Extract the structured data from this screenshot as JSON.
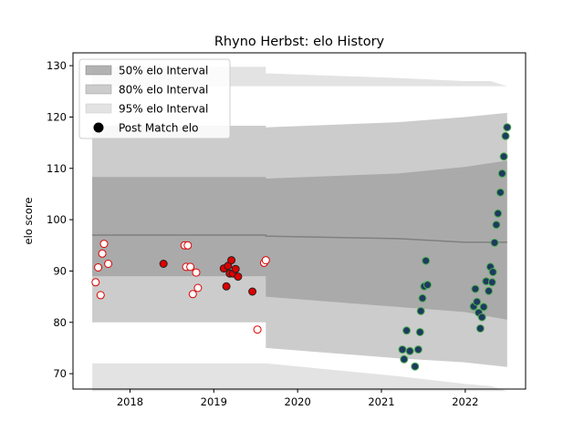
{
  "chart_data": {
    "type": "scatter",
    "title": "Rhyno Herbst: elo History",
    "xlabel": "",
    "ylabel": "elo score",
    "xlim": [
      2017.32,
      2022.72
    ],
    "ylim": [
      67.0,
      132.5
    ],
    "x_ticks": [
      2018,
      2019,
      2020,
      2021,
      2022
    ],
    "x_tick_labels": [
      "2018",
      "2019",
      "2020",
      "2021",
      "2022"
    ],
    "y_ticks": [
      70,
      80,
      90,
      100,
      110,
      120,
      130
    ],
    "y_tick_labels": [
      "70",
      "80",
      "90",
      "100",
      "110",
      "120",
      "130"
    ],
    "grid": false,
    "legend": {
      "placement": "top-left",
      "entries": [
        "50% elo Interval",
        "80% elo Interval",
        "95% elo Interval",
        "Post Match elo"
      ]
    },
    "colors": {
      "band50": "#808080",
      "band80": "#999999",
      "band95": "#c8c8c8",
      "mean_line": "#808080",
      "open_marker_edge": "#dd0000",
      "open_marker_fill": "#ffffff",
      "filled_marker_edge": "#222222",
      "filled_marker_fill": "#dd0000",
      "late_marker_edge": "#4caf50",
      "late_marker_fill": "#1f3a5f"
    },
    "bands": [
      {
        "name": "95% elo Interval",
        "x": [
          2017.55,
          2019.62,
          2019.62,
          2021.2,
          2022.0,
          2022.3,
          2022.5,
          2022.5,
          2022.3,
          2022.0,
          2021.2,
          2019.62,
          2019.62,
          2017.55
        ],
        "y_upper": [
          129.8,
          129.8,
          128.5,
          127.6,
          127.0,
          127.0,
          126.0,
          126.0,
          126.0,
          126.0,
          126.0,
          126.0,
          126.0,
          126.0
        ],
        "y_lower": [
          72.0,
          72.0,
          72.0,
          69.5,
          68.0,
          67.6,
          66.6,
          66.6,
          66.6,
          66.6,
          66.6,
          66.6,
          66.6,
          66.6
        ]
      },
      {
        "name": "80% elo Interval",
        "x": [
          2017.55,
          2019.62,
          2019.62,
          2021.2,
          2022.0,
          2022.5
        ],
        "y_upper": [
          118.3,
          118.3,
          118.0,
          119.0,
          120.0,
          120.8
        ],
        "y_lower": [
          80.0,
          80.0,
          75.0,
          73.0,
          72.2,
          71.3
        ]
      },
      {
        "name": "50% elo Interval",
        "x": [
          2017.55,
          2019.62,
          2019.62,
          2021.2,
          2022.0,
          2022.5
        ],
        "y_upper": [
          108.3,
          108.3,
          108.0,
          109.0,
          110.3,
          111.5
        ],
        "y_lower": [
          89.0,
          89.0,
          85.0,
          83.0,
          82.0,
          80.5
        ]
      }
    ],
    "mean_line": {
      "x": [
        2017.55,
        2019.62,
        2019.62,
        2021.2,
        2022.0,
        2022.3,
        2022.5
      ],
      "y": [
        97.0,
        97.0,
        96.8,
        96.3,
        95.6,
        95.6,
        95.6
      ]
    },
    "series": [
      {
        "x": [
          2017.59,
          2017.62,
          2017.65,
          2017.67,
          2017.69,
          2017.74,
          2018.65,
          2018.67,
          2018.69,
          2018.72,
          2018.75,
          2018.79,
          2018.81,
          2019.52,
          2019.6,
          2019.62
        ],
        "y": [
          87.8,
          90.7,
          85.3,
          93.4,
          95.3,
          91.4,
          95.0,
          90.8,
          95.0,
          90.8,
          85.5,
          89.7,
          86.7,
          78.6,
          91.6,
          92.1
        ]
      },
      {
        "x": [
          2018.4,
          2019.12,
          2019.15,
          2019.17,
          2019.19,
          2019.21,
          2019.23,
          2019.26,
          2019.29,
          2019.46
        ],
        "y": [
          91.4,
          90.5,
          87.0,
          91.0,
          89.5,
          92.1,
          89.5,
          90.4,
          88.9,
          86.0
        ]
      },
      {
        "x": [
          2021.25,
          2021.27,
          2021.3,
          2021.34,
          2021.4,
          2021.44,
          2021.46,
          2021.47,
          2021.49,
          2021.51,
          2021.53,
          2021.55,
          2022.1,
          2022.12,
          2022.14,
          2022.16,
          2022.18,
          2022.2,
          2022.22,
          2022.25,
          2022.28,
          2022.3,
          2022.32,
          2022.33,
          2022.35,
          2022.37,
          2022.39,
          2022.42,
          2022.44,
          2022.46,
          2022.48,
          2022.5
        ],
        "y": [
          74.7,
          72.8,
          78.4,
          74.4,
          71.4,
          74.7,
          78.1,
          82.2,
          84.7,
          87.0,
          92.0,
          87.3,
          83.1,
          86.5,
          84.0,
          81.9,
          78.8,
          81.0,
          83.0,
          88.0,
          86.1,
          90.8,
          87.8,
          89.8,
          95.5,
          99.0,
          101.2,
          105.3,
          109.0,
          112.3,
          116.3,
          118.0
        ]
      }
    ]
  }
}
